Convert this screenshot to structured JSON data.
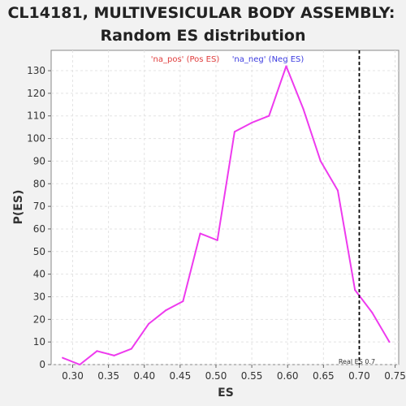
{
  "chart_data": {
    "type": "line",
    "title_line1": "CL14181, MULTIVESICULAR BODY ASSEMBLY:",
    "title_line2": "Random ES distribution",
    "xlabel": "ES",
    "ylabel": "P(ES)",
    "xlim": [
      0.27,
      0.755
    ],
    "ylim": [
      0,
      139
    ],
    "xticks": [
      "0.30",
      "0.35",
      "0.40",
      "0.45",
      "0.50",
      "0.55",
      "0.60",
      "0.65",
      "0.70",
      "0.75"
    ],
    "xtick_values": [
      0.3,
      0.35,
      0.4,
      0.45,
      0.5,
      0.55,
      0.6,
      0.65,
      0.7,
      0.75
    ],
    "yticks": [
      "0",
      "10",
      "20",
      "30",
      "40",
      "50",
      "60",
      "70",
      "80",
      "90",
      "100",
      "110",
      "120",
      "130"
    ],
    "ytick_values": [
      0,
      10,
      20,
      30,
      40,
      50,
      60,
      70,
      80,
      90,
      100,
      110,
      120,
      130
    ],
    "grid": true,
    "series": [
      {
        "color": "#ee3aee",
        "x": [
          0.286,
          0.31,
          0.334,
          0.358,
          0.382,
          0.406,
          0.43,
          0.454,
          0.478,
          0.502,
          0.526,
          0.55,
          0.574,
          0.598,
          0.622,
          0.646,
          0.67,
          0.694,
          0.718,
          0.742
        ],
        "y": [
          3,
          0,
          6,
          4,
          7,
          18,
          24,
          28,
          58,
          55,
          103,
          107,
          110,
          132,
          113,
          90,
          77,
          33,
          23,
          10
        ]
      }
    ],
    "legend": {
      "placement": "top-center",
      "items": [
        {
          "label": "'na_pos' (Pos ES)",
          "color": "#e03c3c"
        },
        {
          "label": "'na_neg' (Neg ES)",
          "color": "#3c3ce0"
        }
      ]
    },
    "real_es": {
      "value": 0.7,
      "label": "Real ES 0.7"
    }
  }
}
